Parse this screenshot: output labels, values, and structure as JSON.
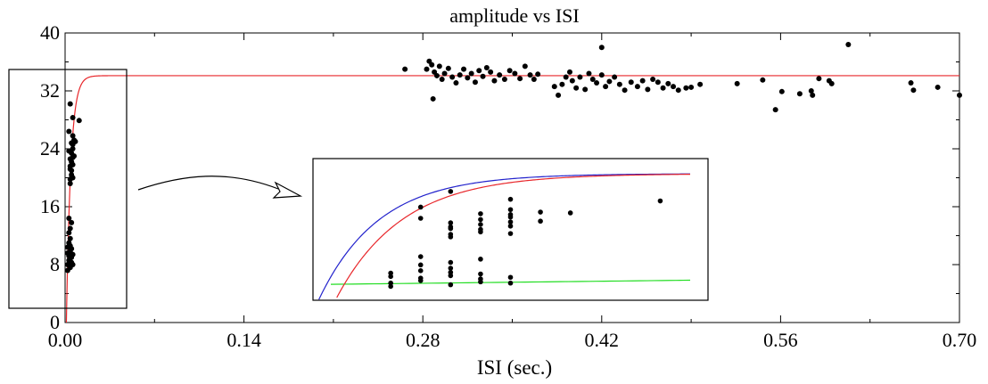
{
  "chart_data": {
    "type": "scatter",
    "title": "amplitude vs ISI",
    "xlabel": "ISI (sec.)",
    "ylabel": "",
    "xlim": [
      0,
      0.7
    ],
    "ylim": [
      0,
      40
    ],
    "x_ticks": [
      {
        "value": 0.0,
        "label": "0.00"
      },
      {
        "value": 0.14,
        "label": "0.14"
      },
      {
        "value": 0.28,
        "label": "0.28"
      },
      {
        "value": 0.42,
        "label": "0.42"
      },
      {
        "value": 0.56,
        "label": "0.56"
      },
      {
        "value": 0.7,
        "label": "0.70"
      }
    ],
    "y_ticks": [
      {
        "value": 0,
        "label": "0"
      },
      {
        "value": 8,
        "label": "8"
      },
      {
        "value": 16,
        "label": "16"
      },
      {
        "value": 24,
        "label": "24"
      },
      {
        "value": 32,
        "label": "32"
      },
      {
        "value": 40,
        "label": "40"
      }
    ],
    "grid": false,
    "colors": {
      "points": "#000000",
      "fit_red": "#e8262a",
      "fit_blue": "#2222cc",
      "fit_green": "#22dd22",
      "axes": "#000000"
    },
    "fit_curve": {
      "asymptote": 34.1,
      "tau": 0.0035,
      "x0": 0.001
    },
    "points": [
      [
        0.002,
        7.2
      ],
      [
        0.002,
        8.0
      ],
      [
        0.003,
        8.6
      ],
      [
        0.003,
        9.2
      ],
      [
        0.004,
        9.8
      ],
      [
        0.002,
        10.4
      ],
      [
        0.003,
        11.0
      ],
      [
        0.004,
        11.6
      ],
      [
        0.005,
        8.3
      ],
      [
        0.005,
        9.0
      ],
      [
        0.006,
        8.0
      ],
      [
        0.004,
        7.6
      ],
      [
        0.003,
        12.4
      ],
      [
        0.004,
        13.0
      ],
      [
        0.005,
        13.8
      ],
      [
        0.003,
        14.4
      ],
      [
        0.004,
        10.6
      ],
      [
        0.006,
        9.4
      ],
      [
        0.005,
        10.2
      ],
      [
        0.002,
        9.6
      ],
      [
        0.004,
        19.2
      ],
      [
        0.004,
        19.8
      ],
      [
        0.005,
        20.4
      ],
      [
        0.005,
        21.0
      ],
      [
        0.004,
        21.6
      ],
      [
        0.005,
        22.2
      ],
      [
        0.006,
        22.8
      ],
      [
        0.005,
        23.4
      ],
      [
        0.006,
        24.0
      ],
      [
        0.006,
        24.6
      ],
      [
        0.007,
        25.2
      ],
      [
        0.006,
        25.8
      ],
      [
        0.003,
        26.4
      ],
      [
        0.004,
        21.2
      ],
      [
        0.006,
        20.0
      ],
      [
        0.007,
        23.0
      ],
      [
        0.005,
        24.8
      ],
      [
        0.004,
        22.6
      ],
      [
        0.006,
        21.8
      ],
      [
        0.008,
        25.0
      ],
      [
        0.004,
        30.2
      ],
      [
        0.006,
        28.3
      ],
      [
        0.011,
        27.9
      ],
      [
        0.003,
        23.7
      ],
      [
        0.283,
        35.0
      ],
      [
        0.285,
        36.1
      ],
      [
        0.287,
        35.6
      ],
      [
        0.289,
        34.6
      ],
      [
        0.291,
        34.1
      ],
      [
        0.293,
        35.4
      ],
      [
        0.295,
        33.6
      ],
      [
        0.297,
        34.4
      ],
      [
        0.3,
        35.1
      ],
      [
        0.303,
        33.9
      ],
      [
        0.306,
        33.1
      ],
      [
        0.309,
        34.2
      ],
      [
        0.312,
        35.0
      ],
      [
        0.315,
        33.8
      ],
      [
        0.318,
        34.4
      ],
      [
        0.321,
        33.2
      ],
      [
        0.324,
        34.8
      ],
      [
        0.327,
        34.0
      ],
      [
        0.33,
        35.2
      ],
      [
        0.333,
        34.6
      ],
      [
        0.336,
        33.4
      ],
      [
        0.34,
        34.2
      ],
      [
        0.344,
        33.6
      ],
      [
        0.348,
        34.8
      ],
      [
        0.352,
        34.4
      ],
      [
        0.356,
        33.7
      ],
      [
        0.36,
        35.4
      ],
      [
        0.364,
        34.2
      ],
      [
        0.367,
        33.6
      ],
      [
        0.37,
        34.3
      ],
      [
        0.288,
        30.9
      ],
      [
        0.266,
        35.0
      ],
      [
        0.383,
        32.6
      ],
      [
        0.386,
        31.4
      ],
      [
        0.389,
        32.9
      ],
      [
        0.392,
        33.9
      ],
      [
        0.395,
        34.6
      ],
      [
        0.397,
        33.4
      ],
      [
        0.4,
        32.4
      ],
      [
        0.403,
        33.9
      ],
      [
        0.407,
        32.2
      ],
      [
        0.41,
        34.4
      ],
      [
        0.413,
        33.6
      ],
      [
        0.416,
        33.1
      ],
      [
        0.42,
        38.0
      ],
      [
        0.42,
        34.2
      ],
      [
        0.423,
        32.6
      ],
      [
        0.426,
        33.3
      ],
      [
        0.43,
        33.9
      ],
      [
        0.434,
        32.9
      ],
      [
        0.438,
        32.1
      ],
      [
        0.443,
        33.2
      ],
      [
        0.448,
        32.6
      ],
      [
        0.452,
        33.4
      ],
      [
        0.456,
        32.2
      ],
      [
        0.46,
        33.6
      ],
      [
        0.464,
        33.2
      ],
      [
        0.468,
        32.4
      ],
      [
        0.472,
        33.0
      ],
      [
        0.476,
        32.6
      ],
      [
        0.48,
        32.1
      ],
      [
        0.486,
        32.4
      ],
      [
        0.49,
        32.5
      ],
      [
        0.497,
        32.9
      ],
      [
        0.526,
        33.0
      ],
      [
        0.546,
        33.5
      ],
      [
        0.556,
        29.4
      ],
      [
        0.561,
        31.9
      ],
      [
        0.575,
        31.6
      ],
      [
        0.584,
        32.0
      ],
      [
        0.585,
        31.4
      ],
      [
        0.59,
        33.7
      ],
      [
        0.598,
        33.4
      ],
      [
        0.6,
        33.0
      ],
      [
        0.613,
        38.4
      ],
      [
        0.662,
        33.1
      ],
      [
        0.664,
        32.1
      ],
      [
        0.683,
        32.5
      ],
      [
        0.7,
        31.4
      ]
    ]
  }
}
